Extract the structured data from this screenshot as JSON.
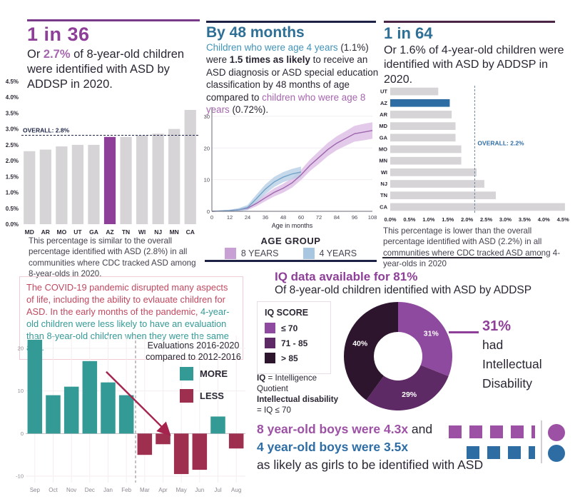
{
  "colors": {
    "purple": "#8e3f98",
    "purple_light_text": "#a565ae",
    "purple_rule": "#7a3a8a",
    "dark_purple_rule": "#4a2545",
    "navy_rule": "#1d2145",
    "blue": "#2e6f96",
    "blue_phrase": "#4193b8",
    "blue_bar": "#2e6da4",
    "teal": "#339a96",
    "crimson": "#9e2f4e",
    "rose": "#c2485f",
    "dark": "#2b2633"
  },
  "panel36": {
    "title": "1 in 36",
    "para": {
      "p1": "Or ",
      "p2": "2.7%",
      "p3": " of 8-year-old children were identified with ASD by ADDSP in 2020."
    },
    "caption": "This percentage is similar to the overall percentage identified with ASD (2.8%) in all communities where CDC tracked ASD among 8-year-olds in 2020."
  },
  "panel48": {
    "title": "By 48 months",
    "para": {
      "p1": "Children who were age 4 years",
      "p2": " (1.1%) were ",
      "p3": "1.5 times as likely",
      "p4": " to receive an ASD diagnosis or ASD special education classification by 48 months of age compared to ",
      "p5": "children who were age 8 years",
      "p6": " (0.72%)."
    },
    "legend_title": "AGE GROUP",
    "legend": [
      {
        "label": "8 YEARS",
        "color": "#c9a0d4"
      },
      {
        "label": "4 YEARS",
        "color": "#a9c6e0"
      }
    ]
  },
  "panel64": {
    "title": "1 in 64",
    "para": "Or 1.6% of 4-year-old children were identified with ASD by ADDSP in 2020.",
    "caption": "This percentage is lower than the overall percentage identified with ASD (2.2%) in all communities where CDC tracked ASD among 4-year-olds in 2020"
  },
  "covid_note": {
    "p1": "The COVID-19 pandemic disrupted many aspects of life, including the ability to evlauate children for ASD. In the early months of the pandemic, ",
    "p2": "4-year-old children were less likely to have an evaluation than 8-year-old children when they were the same age."
  },
  "evals_labels": {
    "annotation_line1": "Evaluations 2016-2020",
    "annotation_line2": "compared to 2012-2016",
    "legend": [
      {
        "label": "MORE",
        "color": "#339a96"
      },
      {
        "label": "LESS",
        "color": "#9e2f4e"
      }
    ]
  },
  "iq": {
    "title": "IQ data available for 81%",
    "subtitle": "Of 8-year-old children identified with ASD by ADDSP",
    "legend_title": "IQ SCORE",
    "legend": [
      {
        "label": "≤ 70",
        "color": "#8e4a9e"
      },
      {
        "label": "71 - 85",
        "color": "#5e2a66"
      },
      {
        "label": "> 85",
        "color": "#2e152e"
      }
    ],
    "note1_bold": "IQ",
    "note1_rest": " = Intelligence Quotient",
    "note2_bold": "Intellectual disability",
    "note2_rest": " = IQ ≤ 70",
    "callout_pct": "31%",
    "callout_lines": {
      "l1": "had",
      "l2": "Intellectual",
      "l3": "Disability"
    }
  },
  "ratios": {
    "line1_colored": "8 year-old boys were 4.3x",
    "line1_rest": " and",
    "line2_colored": "4 year-old boys were 3.5x",
    "line3": "as likely as girls to be identified with ASD",
    "ratio_8yr": 4.3,
    "ratio_4yr": 3.5,
    "color_8yr": "#9c51a4",
    "color_4yr": "#2e6da4"
  },
  "chart_data": [
    {
      "id": "asd-8yr-by-state",
      "type": "bar",
      "categories": [
        "MD",
        "AR",
        "MO",
        "UT",
        "GA",
        "AZ",
        "TN",
        "WI",
        "NJ",
        "MN",
        "CA"
      ],
      "values": [
        2.3,
        2.35,
        2.45,
        2.5,
        2.5,
        2.75,
        2.75,
        2.8,
        2.85,
        3.0,
        3.6
      ],
      "highlight_category": "AZ",
      "highlight_color": "#8e3f98",
      "bar_color": "#d6d4d6",
      "overall": {
        "value": 2.8,
        "label": "OVERALL: 2.8%",
        "label_color": "#1f2547"
      },
      "ylim": [
        0,
        4.5
      ],
      "ytick_step": 0.5,
      "ytick_suffix": "%",
      "xlabel": "",
      "ylabel": ""
    },
    {
      "id": "cumulative-asd-identification-by-age",
      "type": "line",
      "xlabel": "Age in months",
      "legend_position": "bottom",
      "xticks": [
        0,
        12,
        24,
        36,
        48,
        60,
        72,
        84,
        96,
        108
      ],
      "yticks": [
        0,
        10,
        20,
        30
      ],
      "ylim": [
        0,
        32
      ],
      "xlim": [
        0,
        108
      ],
      "series": [
        {
          "name": "8 YEARS",
          "line_color": "#9d66ad",
          "band_color": "#ddbde5",
          "x": [
            0,
            6,
            12,
            18,
            24,
            30,
            36,
            42,
            48,
            54,
            60,
            66,
            72,
            78,
            84,
            90,
            96,
            102,
            108
          ],
          "y": [
            0,
            0.1,
            0.2,
            0.5,
            1,
            2.5,
            4.3,
            6,
            7.3,
            9,
            11.5,
            14.5,
            17,
            19.5,
            21.5,
            23,
            24.5,
            25,
            25.5
          ],
          "band": [
            0.15,
            0.2,
            0.3,
            0.4,
            0.6,
            0.9,
            1.1,
            1.3,
            1.4,
            1.5,
            1.6,
            1.8,
            2,
            2.1,
            2.2,
            2.3,
            2.5,
            2.6,
            2.6
          ]
        },
        {
          "name": "4 YEARS",
          "line_color": "#74a3c9",
          "band_color": "#b7d0e5",
          "x": [
            0,
            6,
            12,
            18,
            24,
            30,
            36,
            42,
            48,
            54,
            60
          ],
          "y": [
            0,
            0.1,
            0.2,
            0.5,
            1.2,
            4,
            7,
            9.3,
            10.8,
            11.8,
            12.4
          ],
          "band": [
            0.15,
            0.2,
            0.3,
            0.5,
            0.8,
            1.3,
            1.5,
            1.6,
            1.6,
            1.6,
            1.7
          ]
        }
      ]
    },
    {
      "id": "asd-4yr-by-state",
      "type": "bar-horizontal",
      "categories": [
        "UT",
        "AZ",
        "AR",
        "MD",
        "GA",
        "MO",
        "MN",
        "WI",
        "NJ",
        "TN",
        "CA"
      ],
      "values": [
        1.25,
        1.55,
        1.6,
        1.7,
        1.7,
        1.85,
        1.85,
        2.25,
        2.45,
        2.75,
        4.55
      ],
      "highlight_category": "AZ",
      "highlight_color": "#2e6da4",
      "bar_color": "#d6d4d6",
      "overall": {
        "value": 2.2,
        "label": "OVERALL: 2.2%",
        "label_color": "#2e6da4"
      },
      "xlim": [
        0,
        4.7
      ],
      "xtick_max": 4.5,
      "xtick_step": 0.5,
      "xtick_suffix": "%"
    },
    {
      "id": "evaluations-change-by-month",
      "type": "bar",
      "categories": [
        "Sep",
        "Oct",
        "Nov",
        "Dec",
        "Jan",
        "Feb",
        "Mar",
        "Apr",
        "May",
        "Jun",
        "Jul",
        "Aug"
      ],
      "values": [
        22,
        9,
        11,
        17,
        12,
        9,
        -5,
        -2.5,
        -9.5,
        -8.5,
        4,
        -3.5
      ],
      "positive_color": "#339a96",
      "negative_color": "#9e2f4e",
      "ylim": [
        -11.5,
        23
      ],
      "yticks": [
        -10,
        0,
        10,
        20
      ],
      "divider_after_index": 5,
      "arrow": {
        "from": [
          3.9,
          14.5
        ],
        "to": [
          7.3,
          0
        ],
        "color": "#a5234c"
      }
    },
    {
      "id": "iq-score-distribution",
      "type": "donut",
      "labels": [
        "≤ 70",
        "71 - 85",
        "> 85"
      ],
      "values": [
        31,
        29,
        40
      ],
      "value_labels": [
        "31%",
        "29%",
        "40%"
      ],
      "colors": [
        "#8e4a9e",
        "#5e2a66",
        "#2e152e"
      ]
    }
  ]
}
